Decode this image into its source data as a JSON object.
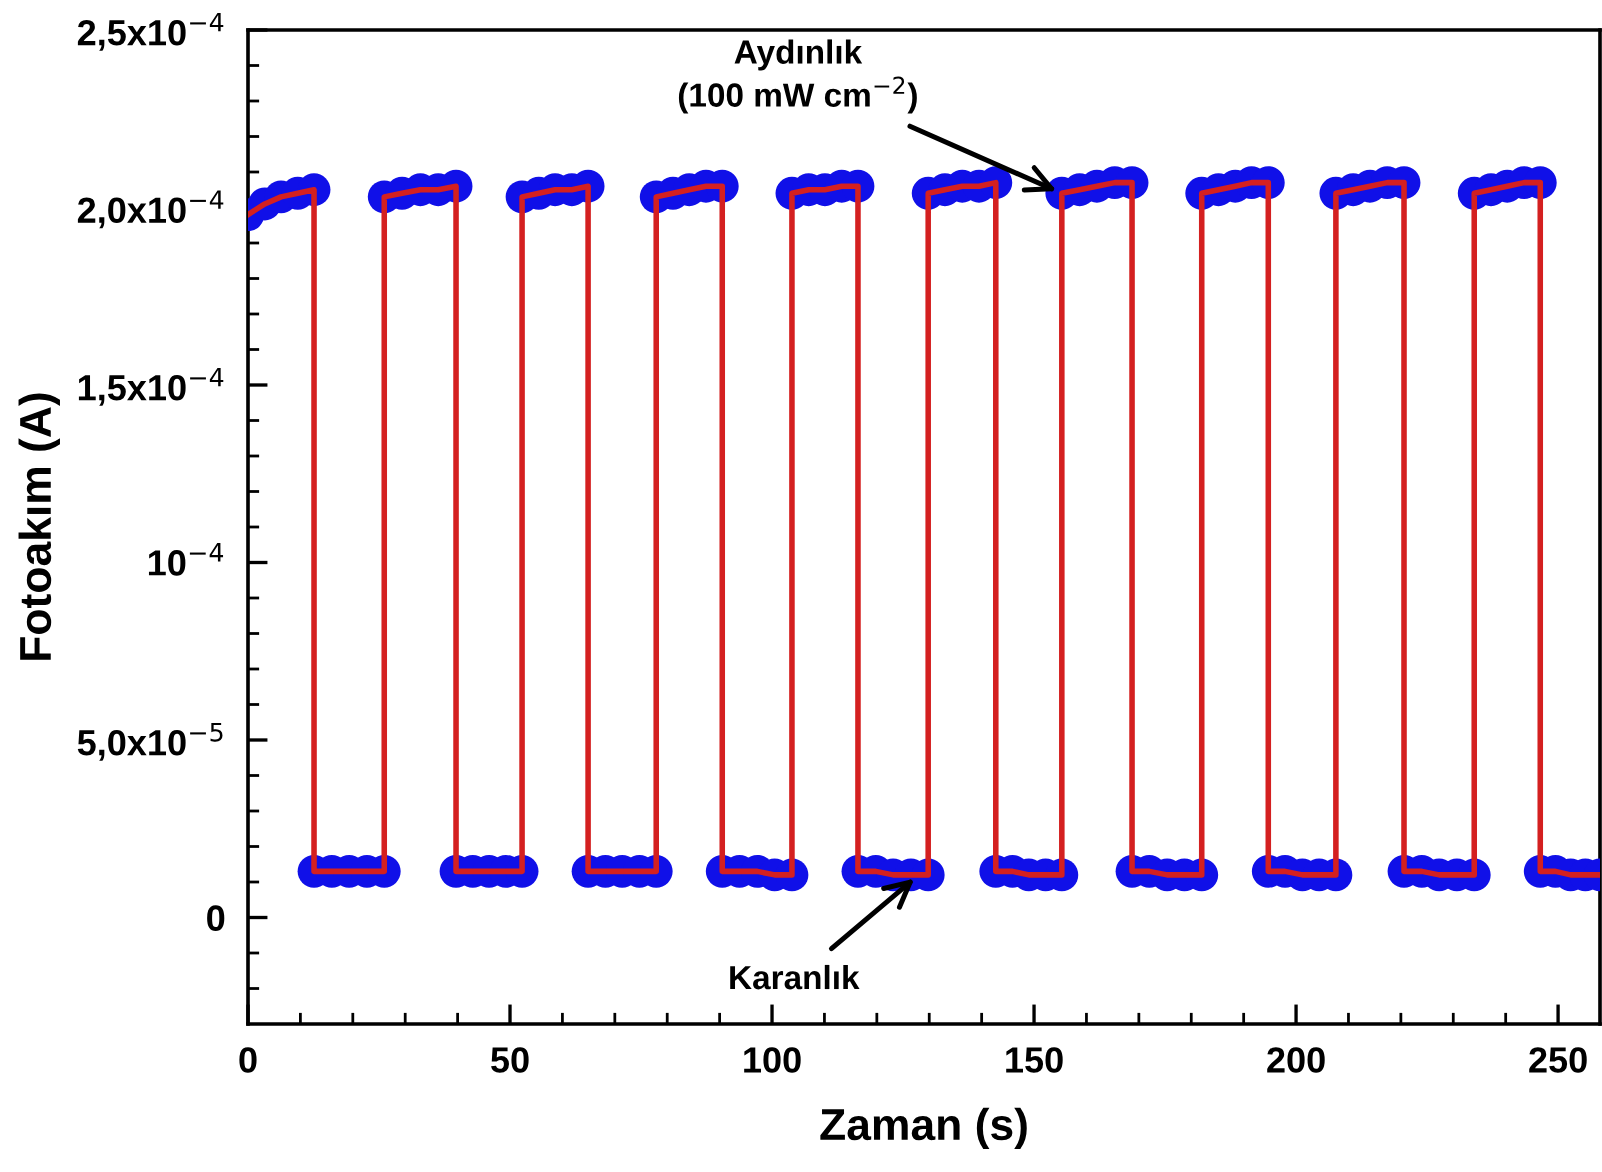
{
  "chart_data": {
    "type": "line",
    "xlabel": "Zaman (s)",
    "ylabel": "Fotoakım (A)",
    "xlim": [
      0,
      258
    ],
    "ylim": [
      -3e-05,
      0.00025
    ],
    "xticks": [
      0,
      {
        "value": 10,
        "label": null
      },
      {
        "value": 20,
        "label": null
      },
      {
        "value": 30,
        "label": null
      },
      {
        "value": 40,
        "label": null
      },
      50,
      {
        "value": 60,
        "label": null
      },
      {
        "value": 70,
        "label": null
      },
      {
        "value": 80,
        "label": null
      },
      {
        "value": 90,
        "label": null
      },
      100,
      {
        "value": 110,
        "label": null
      },
      {
        "value": 120,
        "label": null
      },
      {
        "value": 130,
        "label": null
      },
      {
        "value": 140,
        "label": null
      },
      150,
      {
        "value": 160,
        "label": null
      },
      {
        "value": 170,
        "label": null
      },
      {
        "value": 180,
        "label": null
      },
      {
        "value": 190,
        "label": null
      },
      200,
      {
        "value": 210,
        "label": null
      },
      {
        "value": 220,
        "label": null
      },
      {
        "value": 230,
        "label": null
      },
      {
        "value": 240,
        "label": null
      },
      250
    ],
    "yticks": [
      {
        "value": -2e-05,
        "label": null
      },
      {
        "value": -1e-05,
        "label": null
      },
      0,
      {
        "value": 1e-05,
        "label": null
      },
      {
        "value": 2e-05,
        "label": null
      },
      {
        "value": 3e-05,
        "label": null
      },
      {
        "value": 4e-05,
        "label": null
      },
      {
        "value": 5e-05,
        "label": "5,0x10$^{−5}$"
      },
      {
        "value": 6e-05,
        "label": null
      },
      {
        "value": 7e-05,
        "label": null
      },
      {
        "value": 8e-05,
        "label": null
      },
      {
        "value": 9e-05,
        "label": null
      },
      {
        "value": 0.0001,
        "label": "10$^{−4}$"
      },
      {
        "value": 0.00011,
        "label": null
      },
      {
        "value": 0.00012,
        "label": null
      },
      {
        "value": 0.00013,
        "label": null
      },
      {
        "value": 0.00014,
        "label": null
      },
      {
        "value": 0.00015,
        "label": "1,5x10$^{−4}$"
      },
      {
        "value": 0.00016,
        "label": null
      },
      {
        "value": 0.00017,
        "label": null
      },
      {
        "value": 0.00018,
        "label": null
      },
      {
        "value": 0.00019,
        "label": null
      },
      {
        "value": 0.0002,
        "label": "2,0x10$^{−4}$"
      },
      {
        "value": 0.00021,
        "label": null
      },
      {
        "value": 0.00022,
        "label": null
      },
      {
        "value": 0.00023,
        "label": null
      },
      {
        "value": 0.00024,
        "label": null
      },
      {
        "value": 0.00025,
        "label": "2,5x10$^{−4}$"
      }
    ],
    "grid": false,
    "legend": false,
    "x": [
      0,
      3.2,
      6.3,
      9.5,
      12.6,
      12.6,
      16,
      19.3,
      22.7,
      26.0,
      26.0,
      29.4,
      32.9,
      36.3,
      39.7,
      39.7,
      42.9,
      46,
      49.2,
      52.3,
      52.3,
      55.5,
      58.6,
      61.8,
      64.9,
      64.9,
      68.2,
      71.4,
      74.7,
      77.9,
      77.9,
      81.1,
      84.2,
      87.4,
      90.5,
      90.5,
      93.8,
      97.2,
      100.5,
      103.8,
      103.8,
      107,
      110.1,
      113.3,
      116.4,
      116.4,
      119.8,
      123.1,
      126.5,
      129.8,
      129.8,
      133,
      136.3,
      139.5,
      142.7,
      142.7,
      145.9,
      149,
      152.2,
      155.3,
      155.3,
      158.7,
      162,
      165.4,
      168.7,
      168.7,
      172,
      175.4,
      178.7,
      182.0,
      182.0,
      185.2,
      188.4,
      191.5,
      194.7,
      194.7,
      197.9,
      201.2,
      204.4,
      207.6,
      207.6,
      210.9,
      214.1,
      217.4,
      220.6,
      220.6,
      224,
      227.3,
      230.7,
      234.0,
      234.0,
      237.2,
      240.3,
      243.5,
      246.6,
      246.6,
      249.5,
      252.4,
      255.2,
      258
    ],
    "series": [
      {
        "color": "#d42020",
        "line_style": "solid",
        "values": [
          0.000198,
          0.000201,
          0.000203,
          0.000204,
          0.000205,
          1.3e-05,
          1.3e-05,
          1.3e-05,
          1.3e-05,
          1.3e-05,
          0.000203,
          0.000204,
          0.000205,
          0.000205,
          0.000206,
          1.3e-05,
          1.3e-05,
          1.3e-05,
          1.3e-05,
          1.3e-05,
          0.000203,
          0.000204,
          0.000205,
          0.000205,
          0.000206,
          1.3e-05,
          1.3e-05,
          1.3e-05,
          1.3e-05,
          1.3e-05,
          0.000203,
          0.000204,
          0.000205,
          0.000206,
          0.000206,
          1.3e-05,
          1.3e-05,
          1.3e-05,
          1.2e-05,
          1.2e-05,
          0.000204,
          0.000205,
          0.000205,
          0.000206,
          0.000206,
          1.3e-05,
          1.3e-05,
          1.2e-05,
          1.2e-05,
          1.2e-05,
          0.000204,
          0.000205,
          0.000206,
          0.000206,
          0.000207,
          1.3e-05,
          1.3e-05,
          1.2e-05,
          1.2e-05,
          1.2e-05,
          0.000204,
          0.000205,
          0.000206,
          0.000207,
          0.000207,
          1.3e-05,
          1.3e-05,
          1.2e-05,
          1.2e-05,
          1.2e-05,
          0.000204,
          0.000205,
          0.000206,
          0.000207,
          0.000207,
          1.3e-05,
          1.3e-05,
          1.2e-05,
          1.2e-05,
          1.2e-05,
          0.000204,
          0.000205,
          0.000206,
          0.000207,
          0.000207,
          1.3e-05,
          1.3e-05,
          1.2e-05,
          1.2e-05,
          1.2e-05,
          0.000204,
          0.000205,
          0.000206,
          0.000207,
          0.000207,
          1.3e-05,
          1.3e-05,
          1.2e-05,
          1.2e-05,
          1.2e-05
        ]
      },
      {
        "type": "scatter",
        "color": "#1010e8",
        "marker": "circle",
        "values": [
          0.000198,
          0.000201,
          0.000203,
          0.000204,
          0.000205,
          1.3e-05,
          1.3e-05,
          1.3e-05,
          1.3e-05,
          1.3e-05,
          0.000203,
          0.000204,
          0.000205,
          0.000205,
          0.000206,
          1.3e-05,
          1.3e-05,
          1.3e-05,
          1.3e-05,
          1.3e-05,
          0.000203,
          0.000204,
          0.000205,
          0.000205,
          0.000206,
          1.3e-05,
          1.3e-05,
          1.3e-05,
          1.3e-05,
          1.3e-05,
          0.000203,
          0.000204,
          0.000205,
          0.000206,
          0.000206,
          1.3e-05,
          1.3e-05,
          1.3e-05,
          1.2e-05,
          1.2e-05,
          0.000204,
          0.000205,
          0.000205,
          0.000206,
          0.000206,
          1.3e-05,
          1.3e-05,
          1.2e-05,
          1.2e-05,
          1.2e-05,
          0.000204,
          0.000205,
          0.000206,
          0.000206,
          0.000207,
          1.3e-05,
          1.3e-05,
          1.2e-05,
          1.2e-05,
          1.2e-05,
          0.000204,
          0.000205,
          0.000206,
          0.000207,
          0.000207,
          1.3e-05,
          1.3e-05,
          1.2e-05,
          1.2e-05,
          1.2e-05,
          0.000204,
          0.000205,
          0.000206,
          0.000207,
          0.000207,
          1.3e-05,
          1.3e-05,
          1.2e-05,
          1.2e-05,
          1.2e-05,
          0.000204,
          0.000205,
          0.000206,
          0.000207,
          0.000207,
          1.3e-05,
          1.3e-05,
          1.2e-05,
          1.2e-05,
          1.2e-05,
          0.000204,
          0.000205,
          0.000206,
          0.000207,
          0.000207,
          1.3e-05,
          1.3e-05,
          1.2e-05,
          1.2e-05,
          1.2e-05
        ]
      }
    ],
    "annotations": [
      {
        "text": "Aydınlık\n(100 mW cm$^{−2}$)",
        "x": 155.3,
        "y": 0.000204
      },
      {
        "text": "Karanlık",
        "x": 128,
        "y": 1.2e-05
      }
    ]
  }
}
